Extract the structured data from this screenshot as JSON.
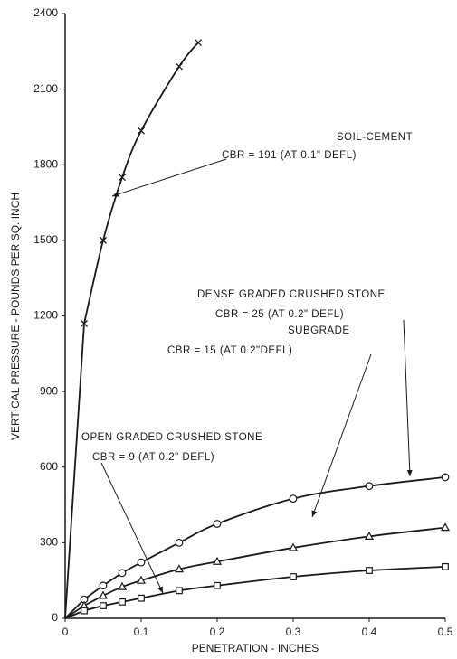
{
  "chart_data": {
    "type": "line",
    "xlabel": "PENETRATION - INCHES",
    "ylabel": "VERTICAL PRESSURE - POUNDS PER SQ. INCH",
    "xlim": [
      0,
      0.5
    ],
    "xticks": [
      0,
      0.1,
      0.2,
      0.3,
      0.4,
      0.5
    ],
    "ylim": [
      0,
      2400
    ],
    "yticks": [
      0,
      300,
      600,
      900,
      1200,
      1500,
      1800,
      2100,
      2400
    ],
    "grid": false,
    "series": [
      {
        "name": "SOIL-CEMENT",
        "annotation": "CBR = 191 (AT 0.1\" DEFL)",
        "color": "#1a1a1a",
        "marker": "x",
        "x": [
          0.025,
          0.05,
          0.075,
          0.1,
          0.15,
          0.175
        ],
        "values": [
          1170,
          1500,
          1750,
          1935,
          2190,
          2285
        ]
      },
      {
        "name": "DENSE GRADED CRUSHED STONE",
        "annotation": "CBR = 25 (AT 0.2\" DEFL)",
        "color": "#1a1a1a",
        "marker": "circle",
        "x": [
          0.025,
          0.05,
          0.075,
          0.1,
          0.15,
          0.2,
          0.3,
          0.4,
          0.5
        ],
        "values": [
          75,
          130,
          180,
          222,
          300,
          375,
          475,
          525,
          560
        ]
      },
      {
        "name": "SUBGRADE",
        "annotation": "CBR = 15 (AT 0.2\"DEFL)",
        "color": "#1a1a1a",
        "marker": "triangle",
        "x": [
          0.025,
          0.05,
          0.075,
          0.1,
          0.15,
          0.2,
          0.3,
          0.4,
          0.5
        ],
        "values": [
          50,
          90,
          125,
          150,
          195,
          225,
          280,
          325,
          360
        ]
      },
      {
        "name": "OPEN GRADED CRUSHED STONE",
        "annotation": "CBR = 9 (AT 0.2\" DEFL)",
        "color": "#1a1a1a",
        "marker": "square",
        "x": [
          0.025,
          0.05,
          0.075,
          0.1,
          0.15,
          0.2,
          0.3,
          0.4,
          0.5
        ],
        "values": [
          30,
          50,
          65,
          80,
          110,
          130,
          165,
          190,
          205
        ]
      }
    ]
  }
}
